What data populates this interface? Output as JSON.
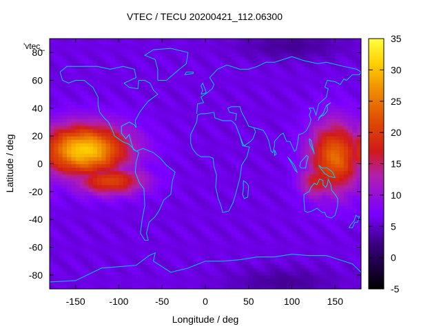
{
  "chart_data": {
    "type": "heatmap",
    "title": "VTEC / TECU 20200421_112.06300",
    "xlabel": "Longitude / deg",
    "ylabel": "Latitude / deg",
    "legend_entry": "'vtec_",
    "xlim": [
      -180,
      180
    ],
    "ylim": [
      -90,
      90
    ],
    "x_ticks": [
      -150,
      -100,
      -50,
      0,
      50,
      100,
      150
    ],
    "y_ticks": [
      -80,
      -60,
      -40,
      -20,
      0,
      20,
      40,
      60,
      80
    ],
    "colorbar": {
      "range": [
        -5,
        35
      ],
      "ticks": [
        -5,
        0,
        5,
        10,
        15,
        20,
        25,
        30,
        35
      ],
      "palette": "black-purple-red-orange-yellow"
    },
    "grid_resolution_deg": {
      "lon": 5,
      "lat": 2.5
    },
    "background_level": 6,
    "enhancements": [
      {
        "region": "eastern Pacific equatorial anomaly",
        "lon_center": -140,
        "lat_center": 10,
        "peak": 31,
        "lon_width": 50,
        "lat_width": 18
      },
      {
        "region": "central/eastern Pacific southern crest",
        "lon_center": -110,
        "lat_center": -12,
        "peak": 21,
        "lon_width": 40,
        "lat_width": 10
      },
      {
        "region": "western Pacific / Australia",
        "lon_center": 150,
        "lat_center": 5,
        "peak": 24,
        "lon_width": 30,
        "lat_width": 25
      },
      {
        "region": "northern Australia",
        "lon_center": 130,
        "lat_center": -12,
        "peak": 18,
        "lon_width": 20,
        "lat_width": 12
      }
    ],
    "depletions": [
      {
        "region": "Arctic Siberia",
        "lon_center": 100,
        "lat_center": 85,
        "value": 3
      },
      {
        "region": "Antarctic",
        "lon_center": 90,
        "lat_center": -85,
        "value": 3
      }
    ],
    "overlay": "world coastlines (cyan)"
  },
  "colors": {
    "coastline": "#00d0ff",
    "plot_background": "#7a00ff",
    "frame": "#000000"
  }
}
